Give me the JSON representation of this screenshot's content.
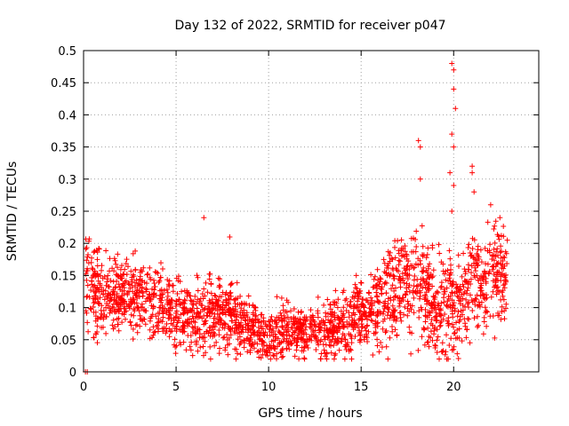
{
  "chart_data": {
    "type": "scatter",
    "title": "Day 132 of 2022, SRMTID for receiver p047",
    "xlabel": "GPS time / hours",
    "ylabel": "SRMTID / TECUs",
    "xlim": [
      0,
      24.6
    ],
    "ylim": [
      0,
      0.5
    ],
    "grid": true,
    "marker": "+",
    "color": "#ff0000",
    "x_ticks": [
      0,
      5,
      10,
      15,
      20
    ],
    "x_tick_labels": [
      "0",
      "5",
      "10",
      "15",
      "20"
    ],
    "y_ticks": [
      0,
      0.05,
      0.1,
      0.15,
      0.2,
      0.25,
      0.3,
      0.35,
      0.4,
      0.45,
      0.5
    ],
    "y_tick_labels": [
      "0",
      "0.05",
      "0.1",
      "0.15",
      "0.2",
      "0.25",
      "0.3",
      "0.35",
      "0.4",
      "0.45",
      "0.5"
    ],
    "trend_profile": {
      "description": "approximate per-hour level, spread and peak of the plotted points",
      "hours": [
        0,
        1,
        2,
        3,
        4,
        5,
        6,
        7,
        8,
        9,
        10,
        11,
        12,
        13,
        14,
        15,
        16,
        17,
        18,
        19,
        20,
        21,
        22,
        23
      ],
      "median": [
        0.14,
        0.12,
        0.12,
        0.12,
        0.11,
        0.09,
        0.08,
        0.09,
        0.09,
        0.07,
        0.06,
        0.065,
        0.06,
        0.065,
        0.075,
        0.09,
        0.1,
        0.13,
        0.14,
        0.1,
        0.1,
        0.14,
        0.15,
        0.16
      ],
      "spread": [
        0.04,
        0.04,
        0.035,
        0.035,
        0.035,
        0.035,
        0.035,
        0.035,
        0.03,
        0.025,
        0.025,
        0.025,
        0.025,
        0.025,
        0.03,
        0.03,
        0.04,
        0.05,
        0.05,
        0.05,
        0.05,
        0.05,
        0.05,
        0.04
      ],
      "peak": [
        0.21,
        0.2,
        0.18,
        0.19,
        0.18,
        0.21,
        0.24,
        0.21,
        0.17,
        0.15,
        0.14,
        0.13,
        0.12,
        0.15,
        0.15,
        0.15,
        0.25,
        0.26,
        0.36,
        0.25,
        0.48,
        0.32,
        0.26,
        0.25
      ]
    },
    "notable_points": [
      {
        "x": 0.1,
        "y": 0.0
      },
      {
        "x": 0.2,
        "y": 0.0
      },
      {
        "x": 6.5,
        "y": 0.24
      },
      {
        "x": 7.9,
        "y": 0.21
      },
      {
        "x": 18.1,
        "y": 0.36
      },
      {
        "x": 18.2,
        "y": 0.35
      },
      {
        "x": 18.2,
        "y": 0.3
      },
      {
        "x": 19.9,
        "y": 0.48
      },
      {
        "x": 20.0,
        "y": 0.47
      },
      {
        "x": 20.0,
        "y": 0.44
      },
      {
        "x": 20.1,
        "y": 0.41
      },
      {
        "x": 19.9,
        "y": 0.37
      },
      {
        "x": 20.0,
        "y": 0.35
      },
      {
        "x": 19.8,
        "y": 0.31
      },
      {
        "x": 20.0,
        "y": 0.29
      },
      {
        "x": 19.9,
        "y": 0.25
      },
      {
        "x": 21.0,
        "y": 0.32
      },
      {
        "x": 21.0,
        "y": 0.31
      },
      {
        "x": 21.1,
        "y": 0.28
      },
      {
        "x": 22.0,
        "y": 0.26
      },
      {
        "x": 22.5,
        "y": 0.24
      }
    ],
    "n_points": 2300
  }
}
